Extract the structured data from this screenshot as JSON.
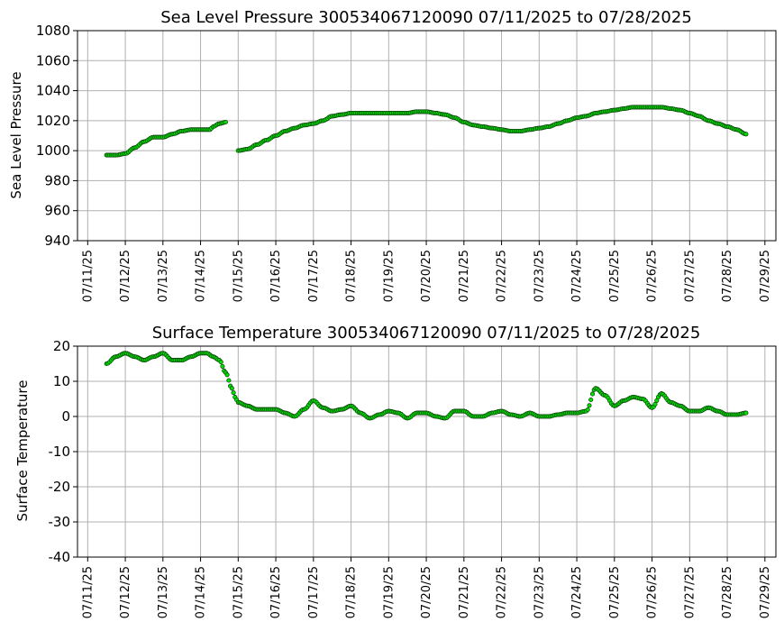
{
  "chart_data": [
    {
      "type": "scatter",
      "title": "Sea Level Pressure 300534067120090  07/11/2025 to 07/28/2025",
      "xlabel": "",
      "ylabel": "Sea Level Pressure",
      "ylim": [
        940,
        1080
      ],
      "yticks": [
        940,
        960,
        980,
        1000,
        1020,
        1040,
        1060,
        1080
      ],
      "xlim": [
        "2025-07-10T17:30",
        "2025-07-29T07:00"
      ],
      "xticks": [
        "07/11/25",
        "07/12/25",
        "07/13/25",
        "07/14/25",
        "07/15/25",
        "07/16/25",
        "07/17/25",
        "07/18/25",
        "07/19/25",
        "07/20/25",
        "07/21/25",
        "07/22/25",
        "07/23/25",
        "07/24/25",
        "07/25/25",
        "07/26/25",
        "07/27/25",
        "07/28/25",
        "07/29/25"
      ],
      "grid": true,
      "marker_color": "#00e000",
      "series": [
        {
          "x": [
            "2025-07-11T12:00",
            "2025-07-11T18:00",
            "2025-07-12T00:00",
            "2025-07-12T06:00",
            "2025-07-12T12:00",
            "2025-07-12T18:00",
            "2025-07-13T00:00",
            "2025-07-13T06:00",
            "2025-07-13T12:00",
            "2025-07-13T18:00",
            "2025-07-14T00:00",
            "2025-07-14T06:00",
            "2025-07-14T08:00",
            "2025-07-14T12:00",
            "2025-07-14T16:00",
            "2025-07-15T00:00",
            "2025-07-15T06:00",
            "2025-07-15T12:00",
            "2025-07-15T18:00",
            "2025-07-16T00:00",
            "2025-07-16T06:00",
            "2025-07-16T12:00",
            "2025-07-16T18:00",
            "2025-07-17T00:00",
            "2025-07-17T06:00",
            "2025-07-17T12:00",
            "2025-07-17T18:00",
            "2025-07-18T00:00",
            "2025-07-18T06:00",
            "2025-07-18T12:00",
            "2025-07-18T18:00",
            "2025-07-19T00:00",
            "2025-07-19T06:00",
            "2025-07-19T12:00",
            "2025-07-19T18:00",
            "2025-07-20T00:00",
            "2025-07-20T06:00",
            "2025-07-20T12:00",
            "2025-07-20T18:00",
            "2025-07-21T00:00",
            "2025-07-21T06:00",
            "2025-07-21T12:00",
            "2025-07-21T18:00",
            "2025-07-22T00:00",
            "2025-07-22T06:00",
            "2025-07-22T12:00",
            "2025-07-22T18:00",
            "2025-07-23T00:00",
            "2025-07-23T06:00",
            "2025-07-23T12:00",
            "2025-07-23T18:00",
            "2025-07-24T00:00",
            "2025-07-24T06:00",
            "2025-07-24T12:00",
            "2025-07-24T18:00",
            "2025-07-25T00:00",
            "2025-07-25T06:00",
            "2025-07-25T12:00",
            "2025-07-25T18:00",
            "2025-07-26T00:00",
            "2025-07-26T06:00",
            "2025-07-26T12:00",
            "2025-07-26T18:00",
            "2025-07-27T00:00",
            "2025-07-27T06:00",
            "2025-07-27T12:00",
            "2025-07-27T18:00",
            "2025-07-28T00:00",
            "2025-07-28T06:00",
            "2025-07-28T12:00"
          ],
          "y": [
            997,
            997,
            998,
            1002,
            1006,
            1009,
            1009,
            1011,
            1013,
            1014,
            1014,
            1014,
            1016,
            1018,
            1019,
            1000,
            1001,
            1004,
            1007,
            1010,
            1013,
            1015,
            1017,
            1018,
            1020,
            1023,
            1024,
            1025,
            1025,
            1025,
            1025,
            1025,
            1025,
            1025,
            1026,
            1026,
            1025,
            1024,
            1022,
            1019,
            1017,
            1016,
            1015,
            1014,
            1013,
            1013,
            1014,
            1015,
            1016,
            1018,
            1020,
            1022,
            1023,
            1025,
            1026,
            1027,
            1028,
            1029,
            1029,
            1029,
            1029,
            1028,
            1027,
            1025,
            1023,
            1020,
            1018,
            1016,
            1014,
            1011
          ]
        }
      ]
    },
    {
      "type": "scatter",
      "title": "Surface Temperature 300534067120090  07/11/2025 to 07/28/2025",
      "xlabel": "",
      "ylabel": "Surface Temperature",
      "ylim": [
        -40,
        20
      ],
      "yticks": [
        -40,
        -30,
        -20,
        -10,
        0,
        10,
        20
      ],
      "xlim": [
        "2025-07-10T17:30",
        "2025-07-29T07:00"
      ],
      "xticks": [
        "07/11/25",
        "07/12/25",
        "07/13/25",
        "07/14/25",
        "07/15/25",
        "07/16/25",
        "07/17/25",
        "07/18/25",
        "07/19/25",
        "07/20/25",
        "07/21/25",
        "07/22/25",
        "07/23/25",
        "07/24/25",
        "07/25/25",
        "07/26/25",
        "07/27/25",
        "07/28/25",
        "07/29/25"
      ],
      "grid": true,
      "marker_color": "#00e000",
      "series": [
        {
          "x": [
            "2025-07-11T12:00",
            "2025-07-11T18:00",
            "2025-07-12T00:00",
            "2025-07-12T06:00",
            "2025-07-12T12:00",
            "2025-07-12T18:00",
            "2025-07-13T00:00",
            "2025-07-13T06:00",
            "2025-07-13T12:00",
            "2025-07-13T18:00",
            "2025-07-14T00:00",
            "2025-07-14T04:00",
            "2025-07-14T08:00",
            "2025-07-14T12:00",
            "2025-07-14T16:00",
            "2025-07-14T20:00",
            "2025-07-14T22:00",
            "2025-07-15T00:00",
            "2025-07-15T06:00",
            "2025-07-15T12:00",
            "2025-07-15T18:00",
            "2025-07-16T00:00",
            "2025-07-16T06:00",
            "2025-07-16T12:00",
            "2025-07-16T18:00",
            "2025-07-17T00:00",
            "2025-07-17T06:00",
            "2025-07-17T12:00",
            "2025-07-17T18:00",
            "2025-07-18T00:00",
            "2025-07-18T06:00",
            "2025-07-18T12:00",
            "2025-07-18T18:00",
            "2025-07-19T00:00",
            "2025-07-19T06:00",
            "2025-07-19T12:00",
            "2025-07-19T18:00",
            "2025-07-20T00:00",
            "2025-07-20T06:00",
            "2025-07-20T12:00",
            "2025-07-20T18:00",
            "2025-07-21T00:00",
            "2025-07-21T06:00",
            "2025-07-21T12:00",
            "2025-07-21T18:00",
            "2025-07-22T00:00",
            "2025-07-22T06:00",
            "2025-07-22T12:00",
            "2025-07-22T18:00",
            "2025-07-23T00:00",
            "2025-07-23T06:00",
            "2025-07-23T12:00",
            "2025-07-23T18:00",
            "2025-07-24T00:00",
            "2025-07-24T06:00",
            "2025-07-24T12:00",
            "2025-07-24T18:00",
            "2025-07-25T00:00",
            "2025-07-25T06:00",
            "2025-07-25T12:00",
            "2025-07-25T18:00",
            "2025-07-26T00:00",
            "2025-07-26T06:00",
            "2025-07-26T12:00",
            "2025-07-26T18:00",
            "2025-07-27T00:00",
            "2025-07-27T06:00",
            "2025-07-27T12:00",
            "2025-07-27T18:00",
            "2025-07-28T00:00",
            "2025-07-28T06:00",
            "2025-07-28T12:00"
          ],
          "y": [
            15,
            17,
            18,
            17,
            16,
            17,
            18,
            16,
            16,
            17,
            18,
            18,
            17,
            16,
            12.5,
            8,
            5.5,
            4,
            3,
            2,
            2,
            2,
            1,
            0,
            2,
            4.5,
            2.5,
            1.5,
            2,
            3,
            1,
            -0.5,
            0.5,
            1.5,
            1,
            -0.5,
            1,
            1,
            0,
            -0.5,
            1.5,
            1.5,
            0,
            0,
            1,
            1.5,
            0.5,
            0,
            1,
            0,
            0,
            0.5,
            1,
            1,
            1.5,
            8,
            6,
            3,
            4.5,
            5.5,
            5,
            2.5,
            6.5,
            4,
            3,
            1.5,
            1.5,
            2.5,
            1.5,
            0.5,
            0.5,
            1
          ]
        }
      ]
    }
  ]
}
